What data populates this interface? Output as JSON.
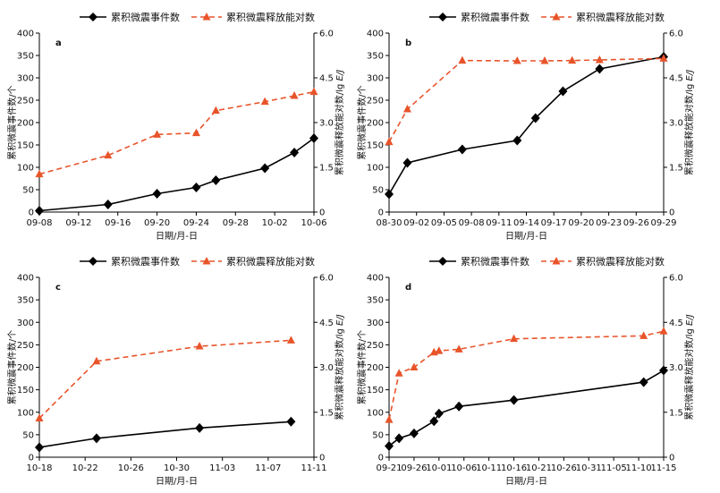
{
  "legend": {
    "events_label": "累积微震事件数",
    "energy_label": "累积微震释放能对数"
  },
  "axis_labels": {
    "x": "日期/月-日",
    "y_left": "累积微震事件数/个",
    "y_right_prefix": "累积微震释放能对数/lg ",
    "y_right_unit": "E/J"
  },
  "colors": {
    "events": "#000000",
    "energy": "#e8542a",
    "axis": "#000000"
  },
  "chart_data": [
    {
      "panel": "a",
      "type": "line",
      "legend_placement": "top-center",
      "grid": false,
      "x_ticks": [
        "09-08",
        "09-12",
        "09-16",
        "09-20",
        "09-24",
        "09-28",
        "10-02",
        "10-06"
      ],
      "xlim_days": [
        0,
        28
      ],
      "ylim_left": [
        0,
        400
      ],
      "yticks_left": [
        0,
        50,
        100,
        150,
        200,
        250,
        300,
        350,
        400
      ],
      "ylim_right": [
        0,
        6.0
      ],
      "yticks_right": [
        "0",
        "1.5",
        "3.0",
        "4.5",
        "6.0"
      ],
      "series": [
        {
          "name": "累积微震事件数",
          "axis": "left",
          "marker": "diamond",
          "points": [
            [
              "09-08",
              3
            ],
            [
              "09-15",
              17
            ],
            [
              "09-20",
              41
            ],
            [
              "09-24",
              55
            ],
            [
              "09-26",
              71
            ],
            [
              "10-01",
              98
            ],
            [
              "10-04",
              133
            ],
            [
              "10-06",
              165
            ]
          ]
        },
        {
          "name": "累积微震释放能对数",
          "axis": "right",
          "marker": "triangle",
          "points": [
            [
              "09-08",
              1.27
            ],
            [
              "09-15",
              1.9
            ],
            [
              "09-20",
              2.6
            ],
            [
              "09-24",
              2.65
            ],
            [
              "09-26",
              3.4
            ],
            [
              "10-01",
              3.7
            ],
            [
              "10-04",
              3.9
            ],
            [
              "10-06",
              4.03
            ]
          ]
        }
      ]
    },
    {
      "panel": "b",
      "type": "line",
      "legend_placement": "top-center",
      "grid": false,
      "x_ticks": [
        "08-30",
        "09-02",
        "09-05",
        "09-08",
        "09-11",
        "09-14",
        "09-17",
        "09-20",
        "09-23",
        "09-26",
        "09-29"
      ],
      "xlim_days": [
        0,
        30
      ],
      "ylim_left": [
        0,
        400
      ],
      "yticks_left": [
        0,
        50,
        100,
        150,
        200,
        250,
        300,
        350,
        400
      ],
      "ylim_right": [
        0,
        6.0
      ],
      "yticks_right": [
        "0",
        "1.5",
        "3.0",
        "4.5",
        "6.0"
      ],
      "series": [
        {
          "name": "累积微震事件数",
          "axis": "left",
          "marker": "diamond",
          "points": [
            [
              "08-30",
              40
            ],
            [
              "09-01",
              110
            ],
            [
              "09-07",
              140
            ],
            [
              "09-13",
              160
            ],
            [
              "09-15",
              210
            ],
            [
              "09-18",
              270
            ],
            [
              "09-22",
              320
            ],
            [
              "09-29",
              347
            ]
          ]
        },
        {
          "name": "累积微震释放能对数",
          "axis": "right",
          "marker": "triangle",
          "points": [
            [
              "08-30",
              2.35
            ],
            [
              "09-01",
              3.45
            ],
            [
              "09-07",
              5.08
            ],
            [
              "09-13",
              5.07
            ],
            [
              "09-16",
              5.07
            ],
            [
              "09-19",
              5.08
            ],
            [
              "09-22",
              5.1
            ],
            [
              "09-29",
              5.15
            ]
          ]
        }
      ]
    },
    {
      "panel": "c",
      "type": "line",
      "legend_placement": "top-center",
      "grid": false,
      "x_ticks": [
        "10-18",
        "10-22",
        "10-26",
        "10-30",
        "11-03",
        "11-07",
        "11-11"
      ],
      "xlim_days": [
        0,
        24
      ],
      "ylim_left": [
        0,
        400
      ],
      "yticks_left": [
        0,
        50,
        100,
        150,
        200,
        250,
        300,
        350,
        400
      ],
      "ylim_right": [
        0,
        6.0
      ],
      "yticks_right": [
        "0",
        "1.5",
        "3.0",
        "4.5",
        "6.0"
      ],
      "series": [
        {
          "name": "累积微震事件数",
          "axis": "left",
          "marker": "diamond",
          "points": [
            [
              "10-18",
              22
            ],
            [
              "10-23",
              42
            ],
            [
              "11-01",
              65
            ],
            [
              "11-09",
              79
            ]
          ]
        },
        {
          "name": "累积微震释放能对数",
          "axis": "right",
          "marker": "triangle",
          "points": [
            [
              "10-18",
              1.3
            ],
            [
              "10-23",
              3.2
            ],
            [
              "11-01",
              3.7
            ],
            [
              "11-09",
              3.9
            ]
          ]
        }
      ]
    },
    {
      "panel": "d",
      "type": "line",
      "legend_placement": "top-center",
      "grid": false,
      "x_ticks": [
        "09-21",
        "09-26",
        "10-01",
        "10-06",
        "10-11",
        "10-16",
        "10-21",
        "10-26",
        "10-31",
        "11-05",
        "11-10",
        "11-15"
      ],
      "xlim_days": [
        0,
        55
      ],
      "ylim_left": [
        0,
        400
      ],
      "yticks_left": [
        0,
        50,
        100,
        150,
        200,
        250,
        300,
        350,
        400
      ],
      "ylim_right": [
        0,
        6.0
      ],
      "yticks_right": [
        "0",
        "1.5",
        "3.0",
        "4.5",
        "6.0"
      ],
      "series": [
        {
          "name": "累积微震事件数",
          "axis": "left",
          "marker": "diamond",
          "points": [
            [
              "09-21",
              25
            ],
            [
              "09-23",
              42
            ],
            [
              "09-26",
              53
            ],
            [
              "09-30",
              80
            ],
            [
              "10-01",
              97
            ],
            [
              "10-05",
              113
            ],
            [
              "10-16",
              127
            ],
            [
              "11-11",
              167
            ],
            [
              "11-15",
              193
            ]
          ]
        },
        {
          "name": "累积微震释放能对数",
          "axis": "right",
          "marker": "triangle",
          "points": [
            [
              "09-21",
              1.25
            ],
            [
              "09-23",
              2.8
            ],
            [
              "09-26",
              3.0
            ],
            [
              "09-30",
              3.5
            ],
            [
              "10-01",
              3.55
            ],
            [
              "10-05",
              3.6
            ],
            [
              "10-16",
              3.95
            ],
            [
              "11-11",
              4.05
            ],
            [
              "11-15",
              4.2
            ]
          ]
        }
      ]
    }
  ]
}
